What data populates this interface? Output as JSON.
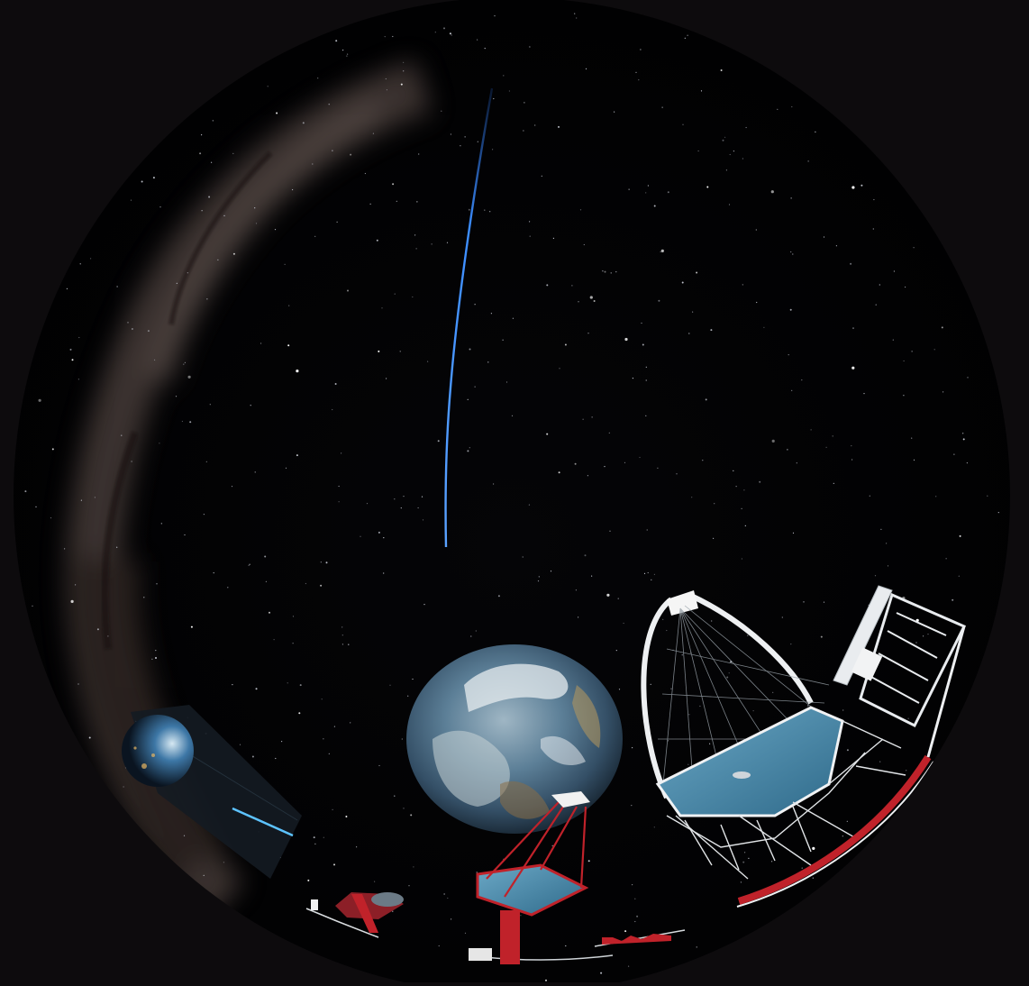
{
  "scene": {
    "description_name": "fulldome-sky-with-telescopes",
    "colors": {
      "frame": "#0d0b0d",
      "sky": "#020203",
      "meteor_trail": "#3c8dff",
      "telescope_red": "#c0222a",
      "mirror_blue": "#4f8cab",
      "structure_white": "#e9ecef"
    }
  }
}
